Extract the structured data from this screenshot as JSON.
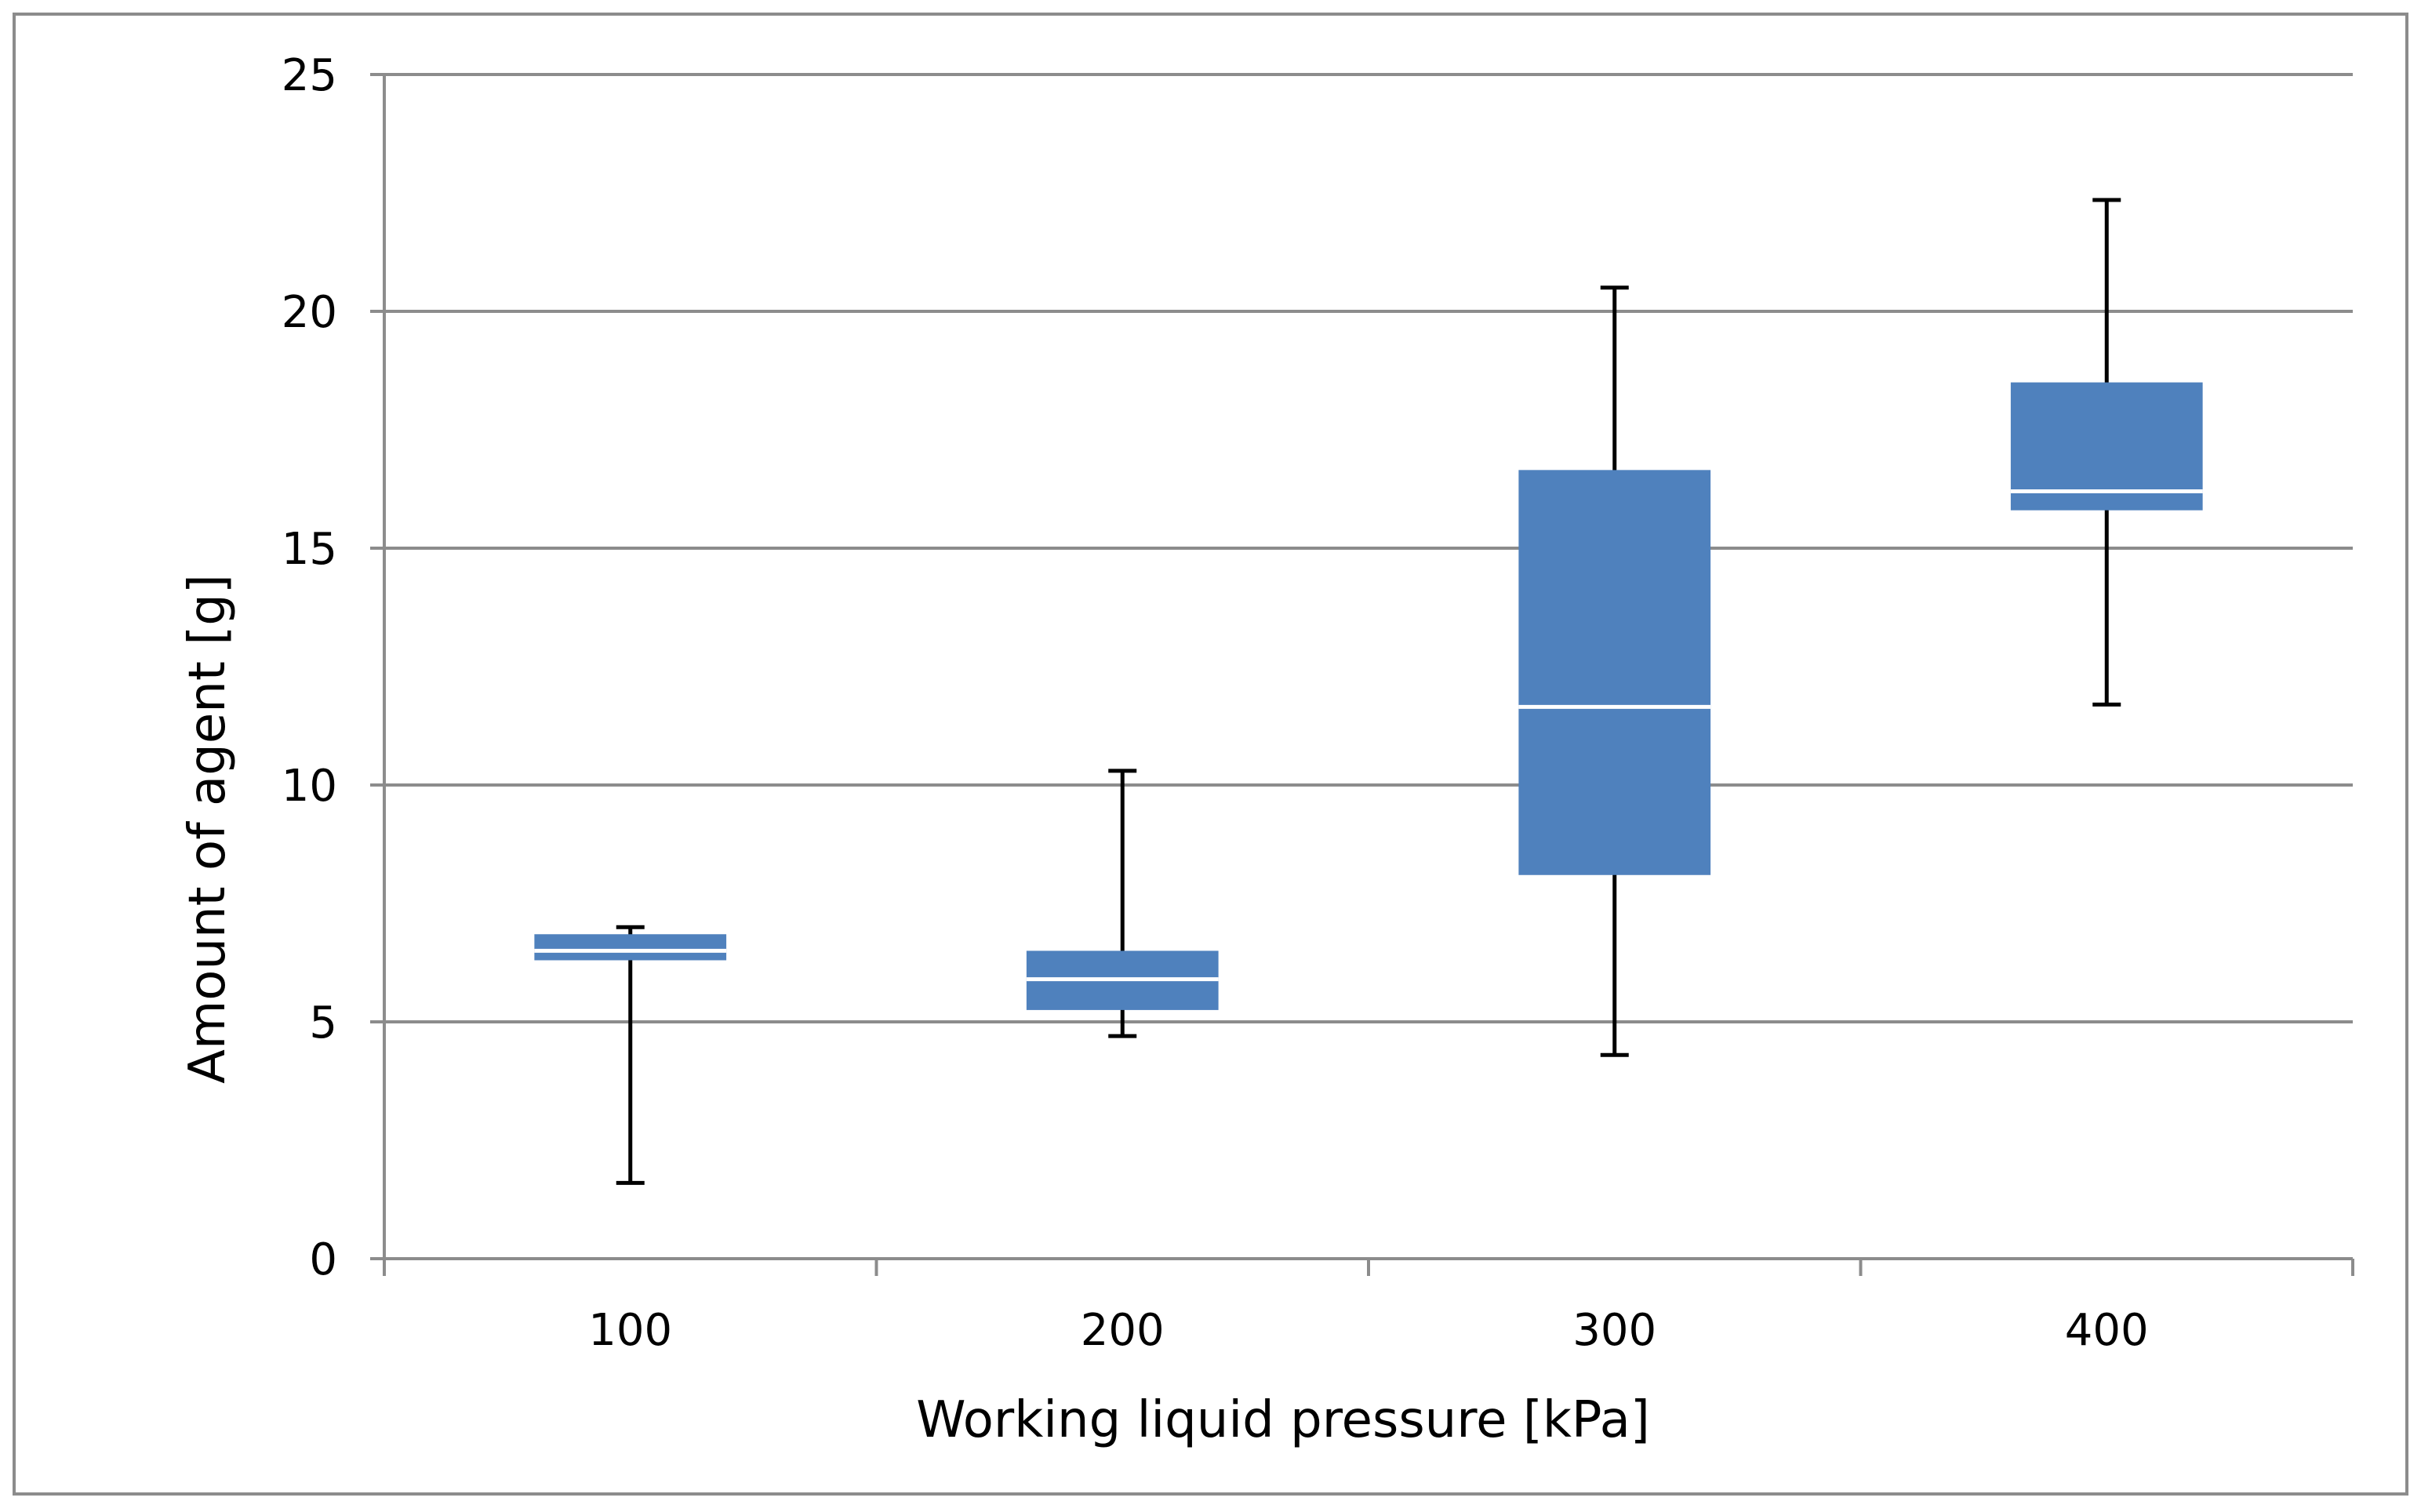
{
  "chart_data": {
    "type": "boxplot",
    "title": "",
    "xlabel": "Working liquid pressure [kPa]",
    "ylabel": "Amount of agent [g]",
    "ylim": [
      0,
      25
    ],
    "yticks": [
      "0",
      "5",
      "10",
      "15",
      "20",
      "25"
    ],
    "ytick_values": [
      0,
      5,
      10,
      15,
      20,
      25
    ],
    "categories": [
      "100",
      "200",
      "300",
      "400"
    ],
    "grid": true,
    "legend": "none",
    "series": [
      {
        "name": "Amount of agent",
        "boxes": [
          {
            "category": "100",
            "min": 1.6,
            "q1": 6.3,
            "median": 6.5,
            "q3": 6.85,
            "max": 7.0
          },
          {
            "category": "200",
            "min": 4.7,
            "q1": 5.25,
            "median": 5.9,
            "q3": 6.5,
            "max": 10.3
          },
          {
            "category": "300",
            "min": 4.3,
            "q1": 8.1,
            "median": 11.65,
            "q3": 16.65,
            "max": 20.5
          },
          {
            "category": "400",
            "min": 11.7,
            "q1": 15.8,
            "median": 16.2,
            "q3": 18.5,
            "max": 22.35
          }
        ]
      }
    ],
    "colors": {
      "box_fill": "#4F81BD",
      "median_line": "#FFFFFF",
      "whisker": "#000000",
      "grid": "#8C8C8C",
      "axis": "#8C8C8C",
      "frame": "#8C8C8C"
    }
  }
}
